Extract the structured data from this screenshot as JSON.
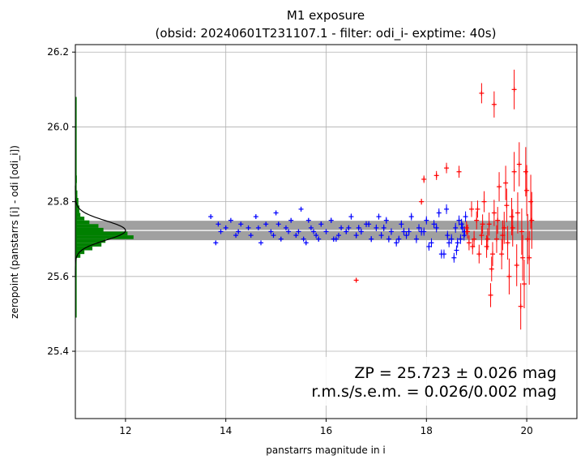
{
  "chart_data": {
    "type": "scatter",
    "title": "M1 exposure",
    "subtitle": "(obsid: 20240601T231107.1 - filter: odi_i- exptime: 40s)",
    "xlabel": "panstarrs magnitude in i",
    "ylabel": "zeropoint (panstarrs [i] - odi [odi_i])",
    "xlim": [
      11.0,
      21.0
    ],
    "ylim": [
      25.22,
      26.22
    ],
    "x_ticks": [
      "12",
      "14",
      "16",
      "18",
      "20"
    ],
    "y_ticks": [
      "25.4",
      "25.6",
      "25.8",
      "26.0",
      "26.2"
    ],
    "grid": true,
    "zp_band": {
      "center": 25.723,
      "halfwidth": 0.026
    },
    "annotations": [
      "ZP = 25.723 ± 0.026 mag",
      "r.m.s/s.e.m. = 0.026/0.002 mag"
    ],
    "histogram": {
      "color": "#008000",
      "bin_width": 0.01,
      "bins": [
        {
          "y": 25.655,
          "x": 11.1
        },
        {
          "y": 25.665,
          "x": 11.18
        },
        {
          "y": 25.675,
          "x": 11.34
        },
        {
          "y": 25.685,
          "x": 11.52
        },
        {
          "y": 25.695,
          "x": 11.6
        },
        {
          "y": 25.705,
          "x": 12.16
        },
        {
          "y": 25.715,
          "x": 12.04
        },
        {
          "y": 25.725,
          "x": 11.56
        },
        {
          "y": 25.735,
          "x": 11.46
        },
        {
          "y": 25.745,
          "x": 11.28
        },
        {
          "y": 25.755,
          "x": 11.18
        },
        {
          "y": 25.765,
          "x": 11.1
        },
        {
          "y": 25.775,
          "x": 11.08
        },
        {
          "y": 25.785,
          "x": 11.08
        },
        {
          "y": 25.795,
          "x": 11.06
        },
        {
          "y": 25.805,
          "x": 11.06
        },
        {
          "y": 25.815,
          "x": 11.04
        },
        {
          "y": 25.825,
          "x": 11.04
        },
        {
          "y": 25.835,
          "x": 11.02
        },
        {
          "y": 25.845,
          "x": 11.02
        },
        {
          "y": 25.855,
          "x": 11.03
        },
        {
          "y": 25.865,
          "x": 11.03
        },
        {
          "y": 25.885,
          "x": 11.02
        }
      ]
    },
    "gaussian_fit": {
      "color": "#000000",
      "mean": 25.723,
      "sigma": 0.026,
      "peak_x": 12.0
    },
    "series": [
      {
        "color": "#0000ff",
        "x": [
          13.7,
          13.8,
          13.9,
          14.0,
          14.1,
          14.2,
          14.3,
          14.5,
          14.6,
          14.7,
          14.8,
          14.9,
          15.0,
          15.1,
          15.2,
          15.3,
          15.4,
          15.5,
          15.6,
          15.7,
          15.8,
          15.9,
          16.0,
          16.1,
          16.2,
          16.3,
          16.4,
          16.5,
          16.6,
          16.7,
          16.8,
          16.9,
          17.0,
          17.1,
          17.2,
          17.3,
          17.4,
          17.5,
          17.6,
          17.7,
          17.8,
          17.9,
          18.0,
          18.1,
          18.2,
          18.3,
          18.4,
          18.5,
          18.6,
          18.7,
          13.85,
          14.25,
          14.65,
          15.05,
          15.45,
          15.65,
          15.85,
          16.25,
          16.65,
          17.05,
          17.45,
          17.85,
          18.05,
          18.25,
          18.45,
          18.55,
          18.65,
          18.75,
          15.25,
          15.55,
          16.45,
          16.85,
          17.25,
          17.65,
          18.15,
          18.35,
          18.62,
          18.72,
          18.78,
          14.45,
          14.95,
          15.75,
          16.15,
          17.15,
          17.55,
          17.95,
          18.42,
          18.58,
          18.68,
          18.76
        ],
        "y": [
          25.76,
          25.69,
          25.72,
          25.73,
          25.75,
          25.71,
          25.74,
          25.71,
          25.76,
          25.69,
          25.74,
          25.72,
          25.77,
          25.7,
          25.73,
          25.75,
          25.71,
          25.78,
          25.69,
          25.73,
          25.71,
          25.74,
          25.72,
          25.75,
          25.7,
          25.73,
          25.72,
          25.76,
          25.71,
          25.72,
          25.74,
          25.7,
          25.73,
          25.71,
          25.75,
          25.72,
          25.69,
          25.74,
          25.71,
          25.76,
          25.7,
          25.72,
          25.75,
          25.69,
          25.73,
          25.66,
          25.78,
          25.7,
          25.67,
          25.74,
          25.74,
          25.72,
          25.73,
          25.74,
          25.72,
          25.75,
          25.7,
          25.71,
          25.73,
          25.76,
          25.7,
          25.73,
          25.68,
          25.77,
          25.69,
          25.65,
          25.75,
          25.71,
          25.72,
          25.7,
          25.73,
          25.74,
          25.7,
          25.72,
          25.74,
          25.66,
          25.69,
          25.73,
          25.76,
          25.73,
          25.71,
          25.72,
          25.7,
          25.73,
          25.72,
          25.72,
          25.71,
          25.73,
          25.7,
          25.72
        ],
        "yerr": [
          0.005,
          0.005,
          0.005,
          0.005,
          0.005,
          0.005,
          0.005,
          0.005,
          0.005,
          0.005,
          0.005,
          0.005,
          0.006,
          0.006,
          0.006,
          0.006,
          0.006,
          0.006,
          0.006,
          0.006,
          0.007,
          0.007,
          0.007,
          0.007,
          0.007,
          0.007,
          0.007,
          0.008,
          0.008,
          0.008,
          0.008,
          0.008,
          0.009,
          0.009,
          0.009,
          0.009,
          0.01,
          0.01,
          0.01,
          0.01,
          0.011,
          0.011,
          0.011,
          0.012,
          0.012,
          0.012,
          0.013,
          0.013,
          0.013,
          0.014,
          0.005,
          0.005,
          0.005,
          0.006,
          0.006,
          0.006,
          0.007,
          0.007,
          0.008,
          0.008,
          0.009,
          0.01,
          0.011,
          0.012,
          0.012,
          0.013,
          0.013,
          0.014,
          0.006,
          0.006,
          0.007,
          0.008,
          0.009,
          0.01,
          0.011,
          0.012,
          0.013,
          0.014,
          0.014,
          0.005,
          0.005,
          0.006,
          0.007,
          0.009,
          0.01,
          0.011,
          0.012,
          0.013,
          0.013,
          0.014
        ]
      },
      {
        "color": "#ff0000",
        "x": [
          16.6,
          17.9,
          17.95,
          18.2,
          18.4,
          18.65,
          18.8,
          18.85,
          18.9,
          18.95,
          19.0,
          19.05,
          19.1,
          19.15,
          19.2,
          19.25,
          19.3,
          19.35,
          19.4,
          19.45,
          19.5,
          19.55,
          19.6,
          19.65,
          19.7,
          19.75,
          19.8,
          19.85,
          19.9,
          19.95,
          20.0,
          20.05,
          20.1,
          19.1,
          19.35,
          19.75,
          18.82,
          18.92,
          19.02,
          19.12,
          19.22,
          19.32,
          19.42,
          19.52,
          19.62,
          19.72,
          19.82,
          19.92,
          20.02,
          20.08,
          19.28,
          19.58,
          19.88,
          19.98
        ],
        "y": [
          25.59,
          25.8,
          25.86,
          25.87,
          25.89,
          25.88,
          25.73,
          25.69,
          25.78,
          25.7,
          25.75,
          25.66,
          25.71,
          25.8,
          25.68,
          25.74,
          25.62,
          25.77,
          25.7,
          25.84,
          25.66,
          25.73,
          25.79,
          25.6,
          25.76,
          25.88,
          25.63,
          25.9,
          25.72,
          25.58,
          25.83,
          25.65,
          25.75,
          26.09,
          26.06,
          26.1,
          25.72,
          25.68,
          25.78,
          25.74,
          25.7,
          25.66,
          25.75,
          25.71,
          25.69,
          25.73,
          25.77,
          25.65,
          25.7,
          25.8,
          25.55,
          25.85,
          25.52,
          25.88
        ],
        "yerr": [
          0.005,
          0.008,
          0.01,
          0.012,
          0.014,
          0.016,
          0.018,
          0.02,
          0.021,
          0.022,
          0.024,
          0.025,
          0.026,
          0.028,
          0.03,
          0.031,
          0.033,
          0.035,
          0.037,
          0.039,
          0.041,
          0.043,
          0.045,
          0.048,
          0.05,
          0.053,
          0.056,
          0.059,
          0.062,
          0.065,
          0.068,
          0.072,
          0.076,
          0.027,
          0.035,
          0.053,
          0.019,
          0.021,
          0.023,
          0.026,
          0.029,
          0.032,
          0.036,
          0.04,
          0.045,
          0.05,
          0.055,
          0.061,
          0.067,
          0.072,
          0.032,
          0.046,
          0.062,
          0.066
        ]
      }
    ]
  }
}
